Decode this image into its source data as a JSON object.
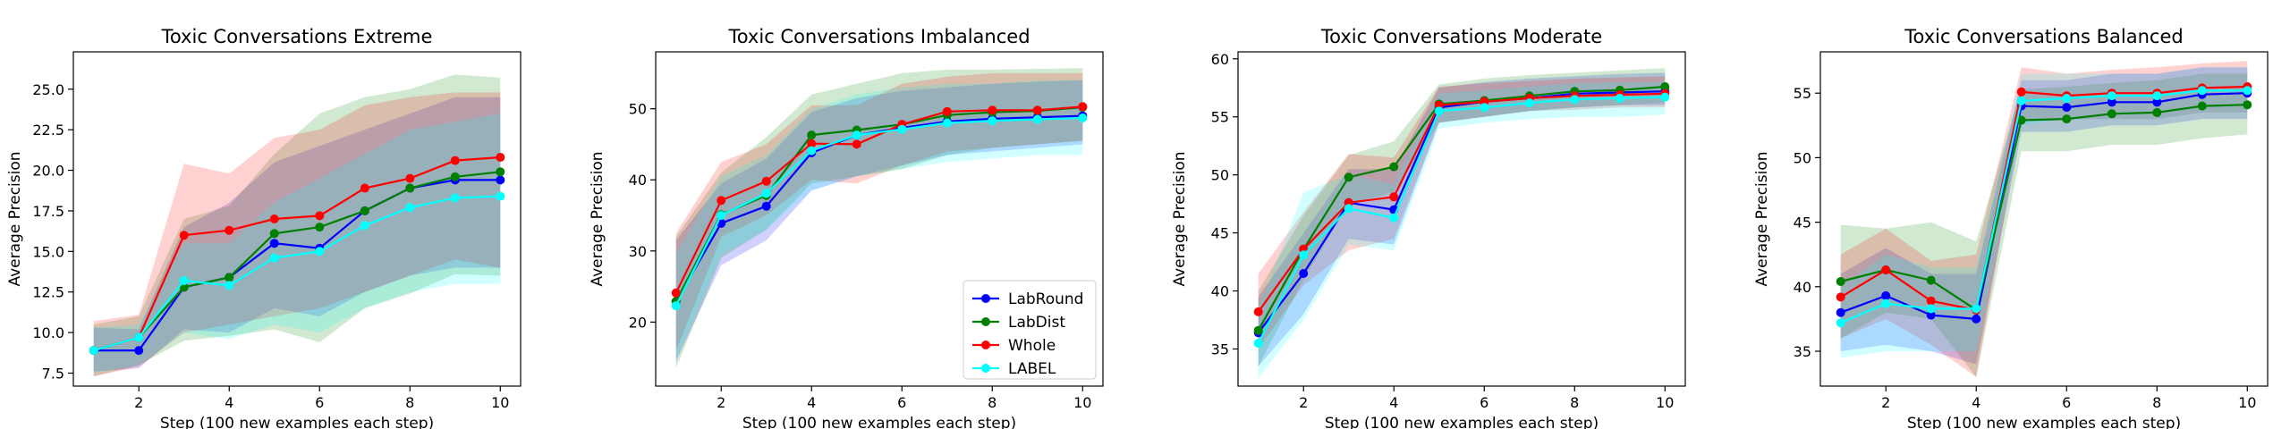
{
  "chart_data": [
    {
      "type": "line",
      "title": "Toxic Conversations Extreme",
      "xlabel": "Step (100 new examples each step)",
      "ylabel": "Average Precision",
      "x": [
        1,
        2,
        3,
        4,
        5,
        6,
        7,
        8,
        9,
        10
      ],
      "xticks": [
        2,
        4,
        6,
        8,
        10
      ],
      "xlim": [
        0.55,
        10.45
      ],
      "ylim": [
        6.7,
        27.3
      ],
      "yticks": [
        7.5,
        10.0,
        12.5,
        15.0,
        17.5,
        20.0,
        22.5,
        25.0
      ],
      "ytick_labels": [
        "7.5",
        "10.0",
        "12.5",
        "15.0",
        "17.5",
        "20.0",
        "22.5",
        "25.0"
      ],
      "legend": false,
      "series": [
        {
          "name": "LabRound",
          "color": "#0000ff",
          "values": [
            8.9,
            8.9,
            12.8,
            13.4,
            15.5,
            15.2,
            17.5,
            18.9,
            19.4,
            19.4
          ],
          "lower": [
            7.6,
            7.8,
            10.2,
            10.0,
            11.5,
            11.0,
            12.5,
            13.5,
            14.0,
            14.0
          ],
          "upper": [
            10.3,
            10.2,
            16.5,
            18.0,
            20.5,
            21.5,
            22.5,
            23.5,
            24.5,
            24.5
          ]
        },
        {
          "name": "LabDist",
          "color": "#008000",
          "values": [
            8.9,
            9.7,
            12.8,
            13.4,
            16.1,
            16.5,
            17.5,
            18.9,
            19.6,
            19.9
          ],
          "lower": [
            7.3,
            8.0,
            9.5,
            9.8,
            10.2,
            9.4,
            11.5,
            12.4,
            13.6,
            13.5
          ],
          "upper": [
            10.5,
            11.0,
            17.0,
            17.8,
            21.0,
            23.5,
            24.5,
            25.0,
            25.9,
            25.7
          ]
        },
        {
          "name": "Whole",
          "color": "#ff0000",
          "values": [
            8.9,
            9.7,
            16.0,
            16.3,
            17.0,
            17.2,
            18.9,
            19.5,
            20.6,
            20.8
          ],
          "lower": [
            7.3,
            7.9,
            10.0,
            10.5,
            11.0,
            11.5,
            12.5,
            13.5,
            14.5,
            14.0
          ],
          "upper": [
            10.7,
            11.1,
            20.4,
            19.8,
            22.0,
            22.5,
            24.0,
            24.5,
            24.8,
            24.8
          ]
        },
        {
          "name": "LABEL",
          "color": "#00ffff",
          "values": [
            8.9,
            9.7,
            13.2,
            12.9,
            14.6,
            15.0,
            16.6,
            17.7,
            18.3,
            18.4
          ],
          "lower": [
            7.5,
            8.0,
            10.0,
            9.6,
            10.5,
            10.0,
            11.5,
            12.5,
            13.0,
            13.0
          ],
          "upper": [
            10.3,
            10.5,
            15.5,
            15.5,
            18.0,
            19.5,
            21.0,
            22.5,
            23.0,
            23.5
          ]
        }
      ]
    },
    {
      "type": "line",
      "title": "Toxic Conversations Imbalanced",
      "xlabel": "Step (100 new examples each step)",
      "ylabel": "Average Precision",
      "x": [
        1,
        2,
        3,
        4,
        5,
        6,
        7,
        8,
        9,
        10
      ],
      "xticks": [
        2,
        4,
        6,
        8,
        10
      ],
      "xlim": [
        0.55,
        10.45
      ],
      "ylim": [
        11,
        58
      ],
      "yticks": [
        20,
        30,
        40,
        50
      ],
      "ytick_labels": [
        "20",
        "30",
        "40",
        "50"
      ],
      "legend": true,
      "legend_position": "lower-right",
      "series": [
        {
          "name": "LabRound",
          "color": "#0000ff",
          "values": [
            22.9,
            33.9,
            36.3,
            43.8,
            46.3,
            47.3,
            48.2,
            48.6,
            48.8,
            49.0
          ],
          "lower": [
            14.5,
            28.0,
            31.5,
            38.5,
            40.5,
            42.0,
            43.5,
            44.0,
            44.5,
            45.0
          ],
          "upper": [
            31.5,
            39.5,
            43.0,
            49.5,
            51.5,
            52.5,
            53.0,
            53.5,
            53.8,
            54.0
          ]
        },
        {
          "name": "LabDist",
          "color": "#008000",
          "values": [
            22.9,
            35.1,
            37.8,
            46.3,
            47.0,
            47.8,
            49.1,
            49.5,
            49.7,
            50.2
          ],
          "lower": [
            13.5,
            29.0,
            33.0,
            39.5,
            40.5,
            41.5,
            43.5,
            44.5,
            45.0,
            45.5
          ],
          "upper": [
            32.0,
            41.0,
            46.0,
            52.0,
            53.5,
            55.0,
            55.5,
            55.5,
            55.6,
            55.7
          ]
        },
        {
          "name": "Whole",
          "color": "#ff0000",
          "values": [
            24.1,
            37.1,
            39.8,
            45.1,
            45.0,
            47.8,
            49.6,
            49.8,
            49.8,
            50.3
          ],
          "lower": [
            16.0,
            32.0,
            35.0,
            40.0,
            39.5,
            42.0,
            44.0,
            44.5,
            45.0,
            45.5
          ],
          "upper": [
            32.5,
            42.5,
            45.0,
            50.5,
            50.5,
            53.5,
            54.5,
            55.0,
            55.0,
            55.0
          ]
        },
        {
          "name": "LABEL",
          "color": "#00ffff",
          "values": [
            22.3,
            35.0,
            38.1,
            44.1,
            46.3,
            47.1,
            48.0,
            48.3,
            48.5,
            48.7
          ],
          "lower": [
            15.0,
            29.5,
            33.0,
            38.5,
            40.5,
            41.5,
            42.5,
            43.0,
            43.5,
            43.5
          ],
          "upper": [
            29.5,
            40.5,
            43.5,
            50.0,
            52.0,
            53.0,
            53.5,
            53.5,
            54.0,
            54.0
          ]
        }
      ]
    },
    {
      "type": "line",
      "title": "Toxic Conversations Moderate",
      "xlabel": "Step (100 new examples each step)",
      "ylabel": "Average Precision",
      "x": [
        1,
        2,
        3,
        4,
        5,
        6,
        7,
        8,
        9,
        10
      ],
      "xticks": [
        2,
        4,
        6,
        8,
        10
      ],
      "xlim": [
        0.55,
        10.45
      ],
      "ylim": [
        31.8,
        60.6
      ],
      "yticks": [
        35,
        40,
        45,
        50,
        55,
        60
      ],
      "ytick_labels": [
        "35",
        "40",
        "45",
        "50",
        "55",
        "60"
      ],
      "legend": false,
      "series": [
        {
          "name": "LabRound",
          "color": "#0000ff",
          "values": [
            36.4,
            41.5,
            47.6,
            47.0,
            55.8,
            56.3,
            56.6,
            57.0,
            57.1,
            57.2
          ],
          "lower": [
            33.5,
            38.0,
            44.5,
            44.0,
            54.5,
            55.0,
            55.5,
            55.8,
            56.0,
            56.0
          ],
          "upper": [
            39.5,
            45.0,
            50.5,
            50.5,
            57.5,
            58.0,
            58.3,
            58.5,
            58.7,
            58.8
          ]
        },
        {
          "name": "LabDist",
          "color": "#008000",
          "values": [
            36.6,
            43.6,
            49.8,
            50.7,
            56.1,
            56.4,
            56.8,
            57.2,
            57.3,
            57.6
          ],
          "lower": [
            33.5,
            41.0,
            47.5,
            48.5,
            54.5,
            55.0,
            55.5,
            55.8,
            56.0,
            56.2
          ],
          "upper": [
            40.0,
            46.5,
            51.7,
            52.9,
            57.8,
            58.3,
            58.6,
            58.8,
            59.0,
            59.2
          ]
        },
        {
          "name": "Whole",
          "color": "#ff0000",
          "values": [
            38.2,
            43.6,
            47.6,
            48.1,
            56.0,
            56.3,
            56.6,
            56.8,
            56.9,
            57.0
          ],
          "lower": [
            35.0,
            40.5,
            43.5,
            44.5,
            54.5,
            55.0,
            55.5,
            55.6,
            55.8,
            55.8
          ],
          "upper": [
            41.5,
            46.8,
            51.8,
            51.5,
            57.6,
            57.9,
            58.1,
            58.3,
            58.4,
            58.5
          ]
        },
        {
          "name": "LABEL",
          "color": "#00ffff",
          "values": [
            35.5,
            43.1,
            47.1,
            46.3,
            55.5,
            55.8,
            56.2,
            56.5,
            56.6,
            56.7
          ],
          "lower": [
            32.5,
            37.5,
            44.0,
            43.5,
            54.0,
            54.5,
            54.8,
            55.0,
            55.0,
            55.2
          ],
          "upper": [
            38.5,
            48.5,
            50.0,
            49.2,
            57.0,
            57.3,
            57.6,
            57.9,
            58.0,
            58.0
          ]
        }
      ]
    },
    {
      "type": "line",
      "title": "Toxic Conversations Balanced",
      "xlabel": "Step (100 new examples each step)",
      "ylabel": "Average Precision",
      "x": [
        1,
        2,
        3,
        4,
        5,
        6,
        7,
        8,
        9,
        10
      ],
      "xticks": [
        2,
        4,
        6,
        8,
        10
      ],
      "xlim": [
        0.55,
        10.45
      ],
      "ylim": [
        32.3,
        58.2
      ],
      "yticks": [
        35,
        40,
        45,
        50,
        55
      ],
      "ytick_labels": [
        "35",
        "40",
        "45",
        "50",
        "55"
      ],
      "legend": false,
      "series": [
        {
          "name": "LabRound",
          "color": "#0000ff",
          "values": [
            38.0,
            39.3,
            37.8,
            37.5,
            54.0,
            53.9,
            54.3,
            54.3,
            54.9,
            55.0
          ],
          "lower": [
            35.0,
            35.5,
            35.0,
            34.0,
            52.0,
            52.0,
            52.5,
            52.5,
            53.0,
            53.0
          ],
          "upper": [
            41.0,
            43.0,
            41.0,
            41.0,
            56.0,
            56.0,
            56.5,
            56.5,
            57.0,
            57.0
          ]
        },
        {
          "name": "LabDist",
          "color": "#008000",
          "values": [
            40.4,
            41.3,
            40.5,
            38.2,
            52.9,
            53.0,
            53.4,
            53.5,
            54.0,
            54.1
          ],
          "lower": [
            36.0,
            38.0,
            37.5,
            33.0,
            50.5,
            50.5,
            51.0,
            51.0,
            51.5,
            51.8
          ],
          "upper": [
            44.8,
            44.5,
            45.0,
            43.5,
            55.3,
            55.5,
            55.8,
            56.0,
            56.5,
            56.5
          ]
        },
        {
          "name": "Whole",
          "color": "#ff0000",
          "values": [
            39.2,
            41.3,
            38.9,
            38.2,
            55.1,
            54.8,
            55.0,
            55.0,
            55.4,
            55.5
          ],
          "lower": [
            36.0,
            37.5,
            35.5,
            33.0,
            53.0,
            53.0,
            53.0,
            53.0,
            53.5,
            53.5
          ],
          "upper": [
            42.5,
            44.5,
            42.0,
            42.5,
            57.0,
            56.5,
            56.8,
            57.0,
            57.3,
            57.5
          ]
        },
        {
          "name": "LABEL",
          "color": "#00ffff",
          "values": [
            37.2,
            38.7,
            38.3,
            38.3,
            54.4,
            54.6,
            54.8,
            54.8,
            55.2,
            55.2
          ],
          "lower": [
            34.5,
            35.0,
            35.0,
            35.0,
            52.5,
            53.0,
            53.0,
            53.0,
            53.5,
            53.5
          ],
          "upper": [
            40.0,
            42.5,
            41.5,
            41.5,
            56.5,
            56.5,
            56.5,
            56.5,
            57.0,
            57.0
          ]
        }
      ]
    }
  ]
}
